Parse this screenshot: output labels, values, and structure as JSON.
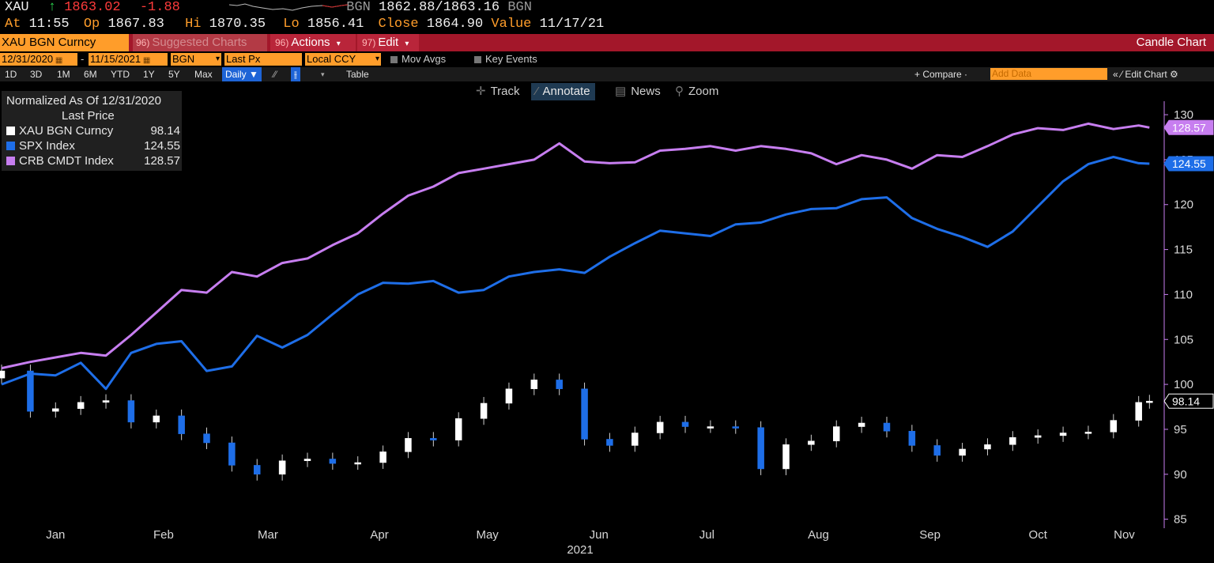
{
  "quote": {
    "ticker": "XAU",
    "arrow": "↑",
    "last": "1863.02",
    "change": "-1.88",
    "bid_label": "BGN",
    "bid_ask": "1862.88/1863.16",
    "src": "BGN",
    "time_label": "At",
    "time": "11:55",
    "open_label": "Op",
    "open": "1867.83",
    "high_label": "Hi",
    "high": "1870.35",
    "low_label": "Lo",
    "low": "1856.41",
    "close_label": "Close",
    "close": "1864.90",
    "value_label": "Value",
    "value_date": "11/17/21"
  },
  "titlebar": {
    "security": "XAU BGN Curncy",
    "suggested_num": "96)",
    "suggested": "Suggested Charts",
    "actions_num": "96)",
    "actions": "Actions",
    "edit_num": "97)",
    "edit": "Edit",
    "chart_type": "Candle Chart"
  },
  "params": {
    "start_date": "12/31/2020",
    "dash": "-",
    "end_date": "11/15/2021",
    "source": "BGN",
    "field": "Last Px",
    "currency": "Local CCY",
    "mov_avgs": "Mov Avgs",
    "key_events": "Key Events"
  },
  "ranges": {
    "items": [
      "1D",
      "3D",
      "1M",
      "6M",
      "YTD",
      "1Y",
      "5Y",
      "Max"
    ],
    "period": "Daily ▼",
    "table": "Table",
    "compare": "+ Compare ·",
    "add_data": "Add Data",
    "edit_chart": "« ⁄ Edit Chart ⚙"
  },
  "tools": {
    "track": "Track",
    "annotate": "Annotate",
    "news": "News",
    "zoom": "Zoom"
  },
  "legend": {
    "title": "Normalized As Of 12/31/2020",
    "subtitle": "Last Price",
    "rows": [
      {
        "name": "XAU BGN Curncy",
        "value": "98.14",
        "color": "#ffffff"
      },
      {
        "name": "SPX Index",
        "value": "124.55",
        "color": "#1e6ee8"
      },
      {
        "name": "CRB CMDT Index",
        "value": "128.57",
        "color": "#c77ef0"
      }
    ]
  },
  "chart_data": {
    "type": "line",
    "xlabel": "2021",
    "x_ticks": [
      "Jan",
      "Feb",
      "Mar",
      "Apr",
      "May",
      "Jun",
      "Jul",
      "Aug",
      "Sep",
      "Oct",
      "Nov"
    ],
    "y_ticks": [
      85,
      90,
      95,
      100,
      105,
      110,
      115,
      120,
      125,
      130
    ],
    "ylim": [
      84,
      131.5
    ],
    "x_dates": [
      "2020-12-31",
      "2021-01-08",
      "2021-01-15",
      "2021-01-22",
      "2021-01-29",
      "2021-02-05",
      "2021-02-12",
      "2021-02-19",
      "2021-02-26",
      "2021-03-05",
      "2021-03-12",
      "2021-03-19",
      "2021-03-26",
      "2021-04-02",
      "2021-04-09",
      "2021-04-16",
      "2021-04-23",
      "2021-04-30",
      "2021-05-07",
      "2021-05-14",
      "2021-05-21",
      "2021-05-28",
      "2021-06-04",
      "2021-06-11",
      "2021-06-18",
      "2021-06-25",
      "2021-07-02",
      "2021-07-09",
      "2021-07-16",
      "2021-07-23",
      "2021-07-30",
      "2021-08-06",
      "2021-08-13",
      "2021-08-20",
      "2021-08-27",
      "2021-09-03",
      "2021-09-10",
      "2021-09-17",
      "2021-09-24",
      "2021-10-01",
      "2021-10-08",
      "2021-10-15",
      "2021-10-22",
      "2021-10-29",
      "2021-11-05",
      "2021-11-12",
      "2021-11-15"
    ],
    "series": [
      {
        "name": "XAU BGN Curncy",
        "style": "candle",
        "color": "#ffffff",
        "down_color": "#1e6ee8",
        "values": [
          101.5,
          97.0,
          97.3,
          98.0,
          98.2,
          95.8,
          96.5,
          94.5,
          93.5,
          91.0,
          90.0,
          91.5,
          91.7,
          91.2,
          91.3,
          92.5,
          94.0,
          93.8,
          96.2,
          97.9,
          99.5,
          100.5,
          99.5,
          93.9,
          93.2,
          94.6,
          95.8,
          95.3,
          95.3,
          95.2,
          90.6,
          93.3,
          93.7,
          95.3,
          95.7,
          94.8,
          93.2,
          92.1,
          92.8,
          93.3,
          94.1,
          94.3,
          94.6,
          94.7,
          96.0,
          98.0,
          98.14
        ]
      },
      {
        "name": "SPX Index",
        "color": "#1e6ee8",
        "values": [
          100.0,
          101.2,
          101.0,
          102.4,
          99.5,
          103.5,
          104.5,
          104.8,
          101.5,
          102.0,
          105.4,
          104.1,
          105.5,
          107.8,
          110.0,
          111.3,
          111.2,
          111.5,
          110.2,
          110.5,
          112.0,
          112.5,
          112.8,
          112.4,
          114.2,
          115.7,
          117.1,
          116.8,
          116.5,
          117.8,
          118.0,
          118.9,
          119.5,
          119.6,
          120.6,
          120.8,
          118.5,
          117.3,
          116.4,
          115.3,
          117.0,
          119.8,
          122.6,
          124.5,
          125.3,
          124.6,
          124.55
        ]
      },
      {
        "name": "CRB CMDT Index",
        "color": "#c77ef0",
        "values": [
          101.8,
          102.5,
          103.0,
          103.5,
          103.2,
          105.5,
          108.0,
          110.5,
          110.2,
          112.5,
          112.0,
          113.5,
          114.0,
          115.5,
          116.8,
          119.0,
          121.0,
          122.0,
          123.5,
          124.0,
          124.5,
          125.0,
          126.8,
          124.8,
          124.6,
          124.7,
          126.0,
          126.2,
          126.5,
          126.0,
          126.5,
          126.2,
          125.7,
          124.5,
          125.5,
          125.0,
          124.0,
          125.5,
          125.3,
          126.5,
          127.8,
          128.5,
          128.3,
          129.0,
          128.4,
          128.8,
          128.57
        ]
      }
    ],
    "last_labels": [
      {
        "series": "CRB CMDT Index",
        "text": "128.57"
      },
      {
        "series": "SPX Index",
        "text": "124.55"
      },
      {
        "series": "XAU BGN Curncy",
        "text": "98.14"
      }
    ],
    "grid": false
  }
}
